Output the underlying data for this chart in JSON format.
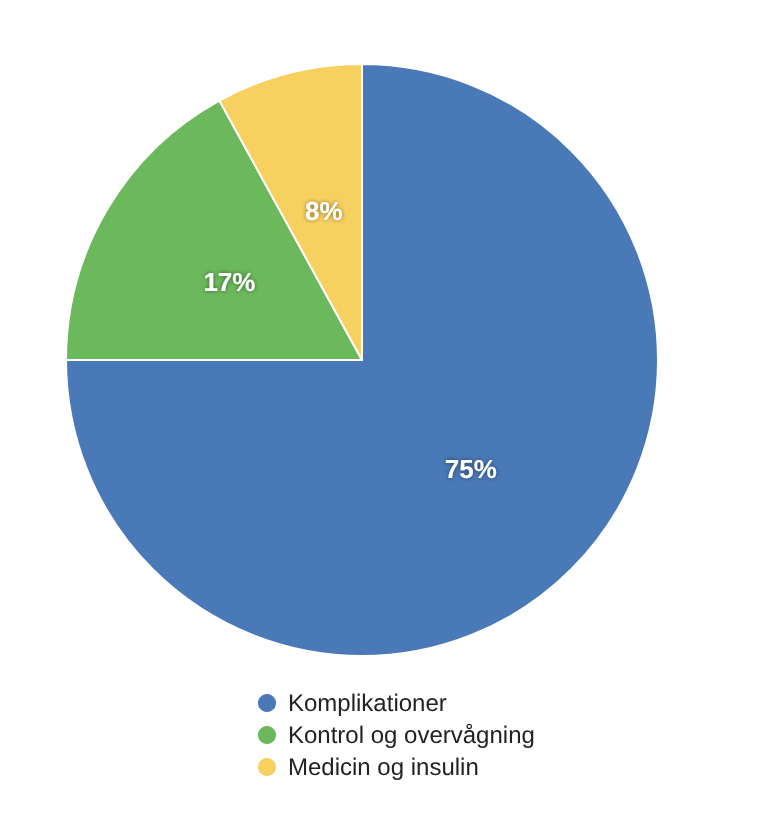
{
  "chart_data": {
    "type": "pie",
    "categories": [
      "Komplikationer",
      "Kontrol og overvågning",
      "Medicin og insulin"
    ],
    "values": [
      75,
      17,
      8
    ],
    "colors": [
      "#4a79b8",
      "#6cb85c",
      "#f7d160"
    ],
    "value_labels": [
      "75%",
      "17%",
      "8%"
    ],
    "legend": "bottom"
  }
}
